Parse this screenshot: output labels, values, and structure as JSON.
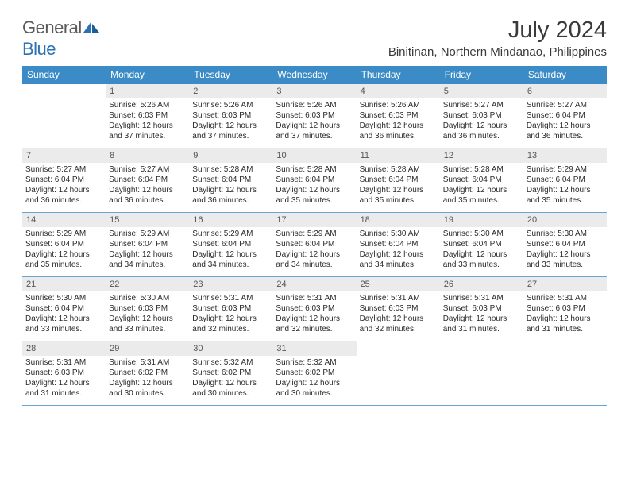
{
  "logo": {
    "general": "General",
    "blue": "Blue"
  },
  "title": "July 2024",
  "subtitle": "Binitinan, Northern Mindanao, Philippines",
  "weekdays": [
    "Sunday",
    "Monday",
    "Tuesday",
    "Wednesday",
    "Thursday",
    "Friday",
    "Saturday"
  ],
  "colors": {
    "header_bg": "#3b8bc7",
    "daynum_bg": "#ebebeb",
    "week_border": "#6aa4d1",
    "logo_gray": "#5a5a5a",
    "logo_blue": "#2a72b5"
  },
  "weeks": [
    [
      {
        "n": "",
        "sr": "",
        "ss": "",
        "dl": ""
      },
      {
        "n": "1",
        "sr": "Sunrise: 5:26 AM",
        "ss": "Sunset: 6:03 PM",
        "dl": "Daylight: 12 hours and 37 minutes."
      },
      {
        "n": "2",
        "sr": "Sunrise: 5:26 AM",
        "ss": "Sunset: 6:03 PM",
        "dl": "Daylight: 12 hours and 37 minutes."
      },
      {
        "n": "3",
        "sr": "Sunrise: 5:26 AM",
        "ss": "Sunset: 6:03 PM",
        "dl": "Daylight: 12 hours and 37 minutes."
      },
      {
        "n": "4",
        "sr": "Sunrise: 5:26 AM",
        "ss": "Sunset: 6:03 PM",
        "dl": "Daylight: 12 hours and 36 minutes."
      },
      {
        "n": "5",
        "sr": "Sunrise: 5:27 AM",
        "ss": "Sunset: 6:03 PM",
        "dl": "Daylight: 12 hours and 36 minutes."
      },
      {
        "n": "6",
        "sr": "Sunrise: 5:27 AM",
        "ss": "Sunset: 6:04 PM",
        "dl": "Daylight: 12 hours and 36 minutes."
      }
    ],
    [
      {
        "n": "7",
        "sr": "Sunrise: 5:27 AM",
        "ss": "Sunset: 6:04 PM",
        "dl": "Daylight: 12 hours and 36 minutes."
      },
      {
        "n": "8",
        "sr": "Sunrise: 5:27 AM",
        "ss": "Sunset: 6:04 PM",
        "dl": "Daylight: 12 hours and 36 minutes."
      },
      {
        "n": "9",
        "sr": "Sunrise: 5:28 AM",
        "ss": "Sunset: 6:04 PM",
        "dl": "Daylight: 12 hours and 36 minutes."
      },
      {
        "n": "10",
        "sr": "Sunrise: 5:28 AM",
        "ss": "Sunset: 6:04 PM",
        "dl": "Daylight: 12 hours and 35 minutes."
      },
      {
        "n": "11",
        "sr": "Sunrise: 5:28 AM",
        "ss": "Sunset: 6:04 PM",
        "dl": "Daylight: 12 hours and 35 minutes."
      },
      {
        "n": "12",
        "sr": "Sunrise: 5:28 AM",
        "ss": "Sunset: 6:04 PM",
        "dl": "Daylight: 12 hours and 35 minutes."
      },
      {
        "n": "13",
        "sr": "Sunrise: 5:29 AM",
        "ss": "Sunset: 6:04 PM",
        "dl": "Daylight: 12 hours and 35 minutes."
      }
    ],
    [
      {
        "n": "14",
        "sr": "Sunrise: 5:29 AM",
        "ss": "Sunset: 6:04 PM",
        "dl": "Daylight: 12 hours and 35 minutes."
      },
      {
        "n": "15",
        "sr": "Sunrise: 5:29 AM",
        "ss": "Sunset: 6:04 PM",
        "dl": "Daylight: 12 hours and 34 minutes."
      },
      {
        "n": "16",
        "sr": "Sunrise: 5:29 AM",
        "ss": "Sunset: 6:04 PM",
        "dl": "Daylight: 12 hours and 34 minutes."
      },
      {
        "n": "17",
        "sr": "Sunrise: 5:29 AM",
        "ss": "Sunset: 6:04 PM",
        "dl": "Daylight: 12 hours and 34 minutes."
      },
      {
        "n": "18",
        "sr": "Sunrise: 5:30 AM",
        "ss": "Sunset: 6:04 PM",
        "dl": "Daylight: 12 hours and 34 minutes."
      },
      {
        "n": "19",
        "sr": "Sunrise: 5:30 AM",
        "ss": "Sunset: 6:04 PM",
        "dl": "Daylight: 12 hours and 33 minutes."
      },
      {
        "n": "20",
        "sr": "Sunrise: 5:30 AM",
        "ss": "Sunset: 6:04 PM",
        "dl": "Daylight: 12 hours and 33 minutes."
      }
    ],
    [
      {
        "n": "21",
        "sr": "Sunrise: 5:30 AM",
        "ss": "Sunset: 6:04 PM",
        "dl": "Daylight: 12 hours and 33 minutes."
      },
      {
        "n": "22",
        "sr": "Sunrise: 5:30 AM",
        "ss": "Sunset: 6:03 PM",
        "dl": "Daylight: 12 hours and 33 minutes."
      },
      {
        "n": "23",
        "sr": "Sunrise: 5:31 AM",
        "ss": "Sunset: 6:03 PM",
        "dl": "Daylight: 12 hours and 32 minutes."
      },
      {
        "n": "24",
        "sr": "Sunrise: 5:31 AM",
        "ss": "Sunset: 6:03 PM",
        "dl": "Daylight: 12 hours and 32 minutes."
      },
      {
        "n": "25",
        "sr": "Sunrise: 5:31 AM",
        "ss": "Sunset: 6:03 PM",
        "dl": "Daylight: 12 hours and 32 minutes."
      },
      {
        "n": "26",
        "sr": "Sunrise: 5:31 AM",
        "ss": "Sunset: 6:03 PM",
        "dl": "Daylight: 12 hours and 31 minutes."
      },
      {
        "n": "27",
        "sr": "Sunrise: 5:31 AM",
        "ss": "Sunset: 6:03 PM",
        "dl": "Daylight: 12 hours and 31 minutes."
      }
    ],
    [
      {
        "n": "28",
        "sr": "Sunrise: 5:31 AM",
        "ss": "Sunset: 6:03 PM",
        "dl": "Daylight: 12 hours and 31 minutes."
      },
      {
        "n": "29",
        "sr": "Sunrise: 5:31 AM",
        "ss": "Sunset: 6:02 PM",
        "dl": "Daylight: 12 hours and 30 minutes."
      },
      {
        "n": "30",
        "sr": "Sunrise: 5:32 AM",
        "ss": "Sunset: 6:02 PM",
        "dl": "Daylight: 12 hours and 30 minutes."
      },
      {
        "n": "31",
        "sr": "Sunrise: 5:32 AM",
        "ss": "Sunset: 6:02 PM",
        "dl": "Daylight: 12 hours and 30 minutes."
      },
      {
        "n": "",
        "sr": "",
        "ss": "",
        "dl": ""
      },
      {
        "n": "",
        "sr": "",
        "ss": "",
        "dl": ""
      },
      {
        "n": "",
        "sr": "",
        "ss": "",
        "dl": ""
      }
    ]
  ]
}
